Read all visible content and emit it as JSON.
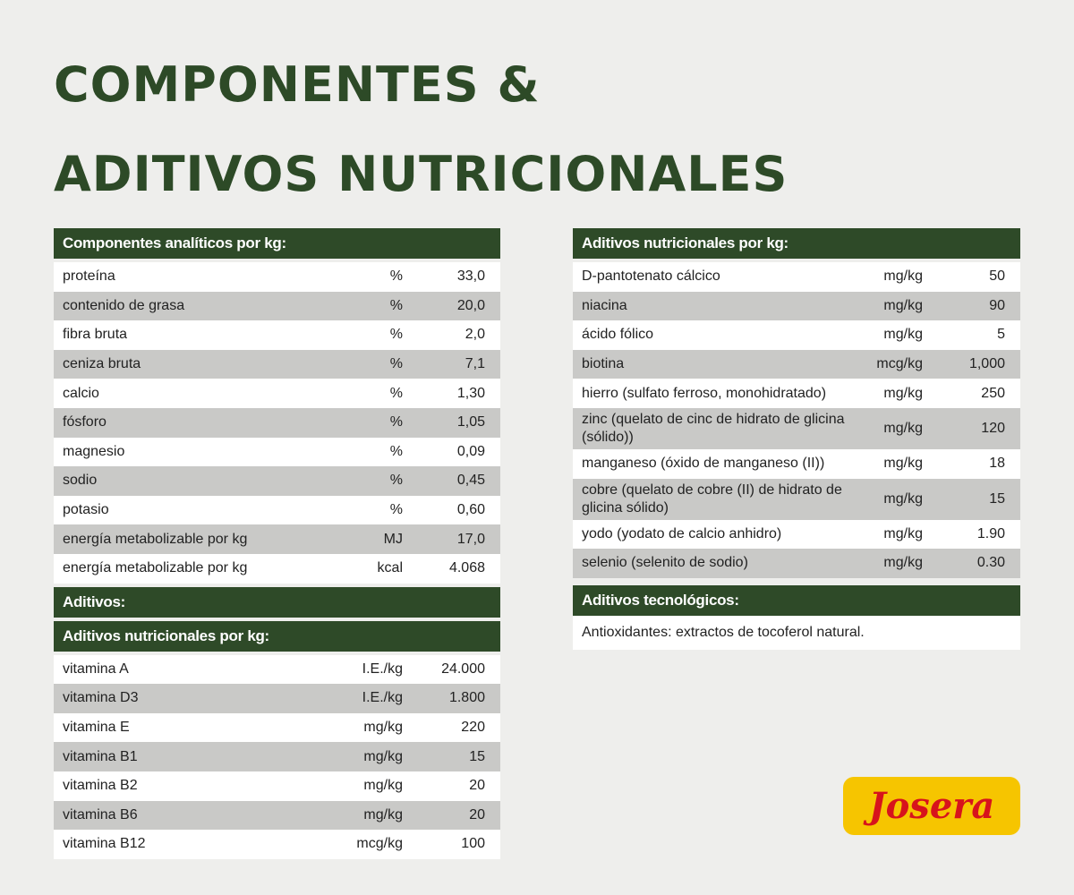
{
  "title": {
    "line1": "COMPONENTES &",
    "line2": "ADITIVOS NUTRICIONALES"
  },
  "left": {
    "analytic": {
      "header": "Componentes analíticos por kg:",
      "rows": [
        [
          "proteína",
          "%",
          "33,0"
        ],
        [
          "contenido de grasa",
          "%",
          "20,0"
        ],
        [
          "fibra bruta",
          "%",
          "2,0"
        ],
        [
          "ceniza bruta",
          "%",
          "7,1"
        ],
        [
          "calcio",
          "%",
          "1,30"
        ],
        [
          "fósforo",
          "%",
          "1,05"
        ],
        [
          "magnesio",
          "%",
          "0,09"
        ],
        [
          "sodio",
          "%",
          "0,45"
        ],
        [
          "potasio",
          "%",
          "0,60"
        ],
        [
          "energía metabolizable por kg",
          "MJ",
          "17,0"
        ],
        [
          "energía metabolizable por kg",
          "kcal",
          "4.068"
        ]
      ]
    },
    "additives_header": "Aditivos:",
    "nutritional": {
      "header": "Aditivos nutricionales por kg:",
      "rows": [
        [
          "vitamina A",
          "I.E./kg",
          "24.000"
        ],
        [
          "vitamina D3",
          "I.E./kg",
          "1.800"
        ],
        [
          "vitamina E",
          "mg/kg",
          "220"
        ],
        [
          "vitamina B1",
          "mg/kg",
          "15"
        ],
        [
          "vitamina B2",
          "mg/kg",
          "20"
        ],
        [
          "vitamina B6",
          "mg/kg",
          "20"
        ],
        [
          "vitamina B12",
          "mcg/kg",
          "100"
        ]
      ]
    }
  },
  "right": {
    "nutritional": {
      "header": "Aditivos nutricionales por kg:",
      "rows": [
        [
          "D-pantotenato cálcico",
          "mg/kg",
          "50"
        ],
        [
          "niacina",
          "mg/kg",
          "90"
        ],
        [
          "ácido fólico",
          "mg/kg",
          "5"
        ],
        [
          "biotina",
          "mcg/kg",
          "1,000"
        ],
        [
          "hierro (sulfato ferroso, monohidratado)",
          "mg/kg",
          "250"
        ],
        [
          "zinc (quelato de cinc de hidrato de glicina (sólido))",
          "mg/kg",
          "120"
        ],
        [
          "manganeso (óxido de manganeso (II))",
          "mg/kg",
          "18"
        ],
        [
          "cobre (quelato de cobre (II) de hidrato de glicina sólido)",
          "mg/kg",
          "15"
        ],
        [
          "yodo (yodato de calcio anhidro)",
          "mg/kg",
          "1.90"
        ],
        [
          "selenio (selenito de sodio)",
          "mg/kg",
          "0.30"
        ]
      ]
    },
    "technological": {
      "header": "Aditivos tecnológicos:",
      "text": "Antioxidantes: extractos de tocoferol natural."
    }
  },
  "logo": "Josera"
}
